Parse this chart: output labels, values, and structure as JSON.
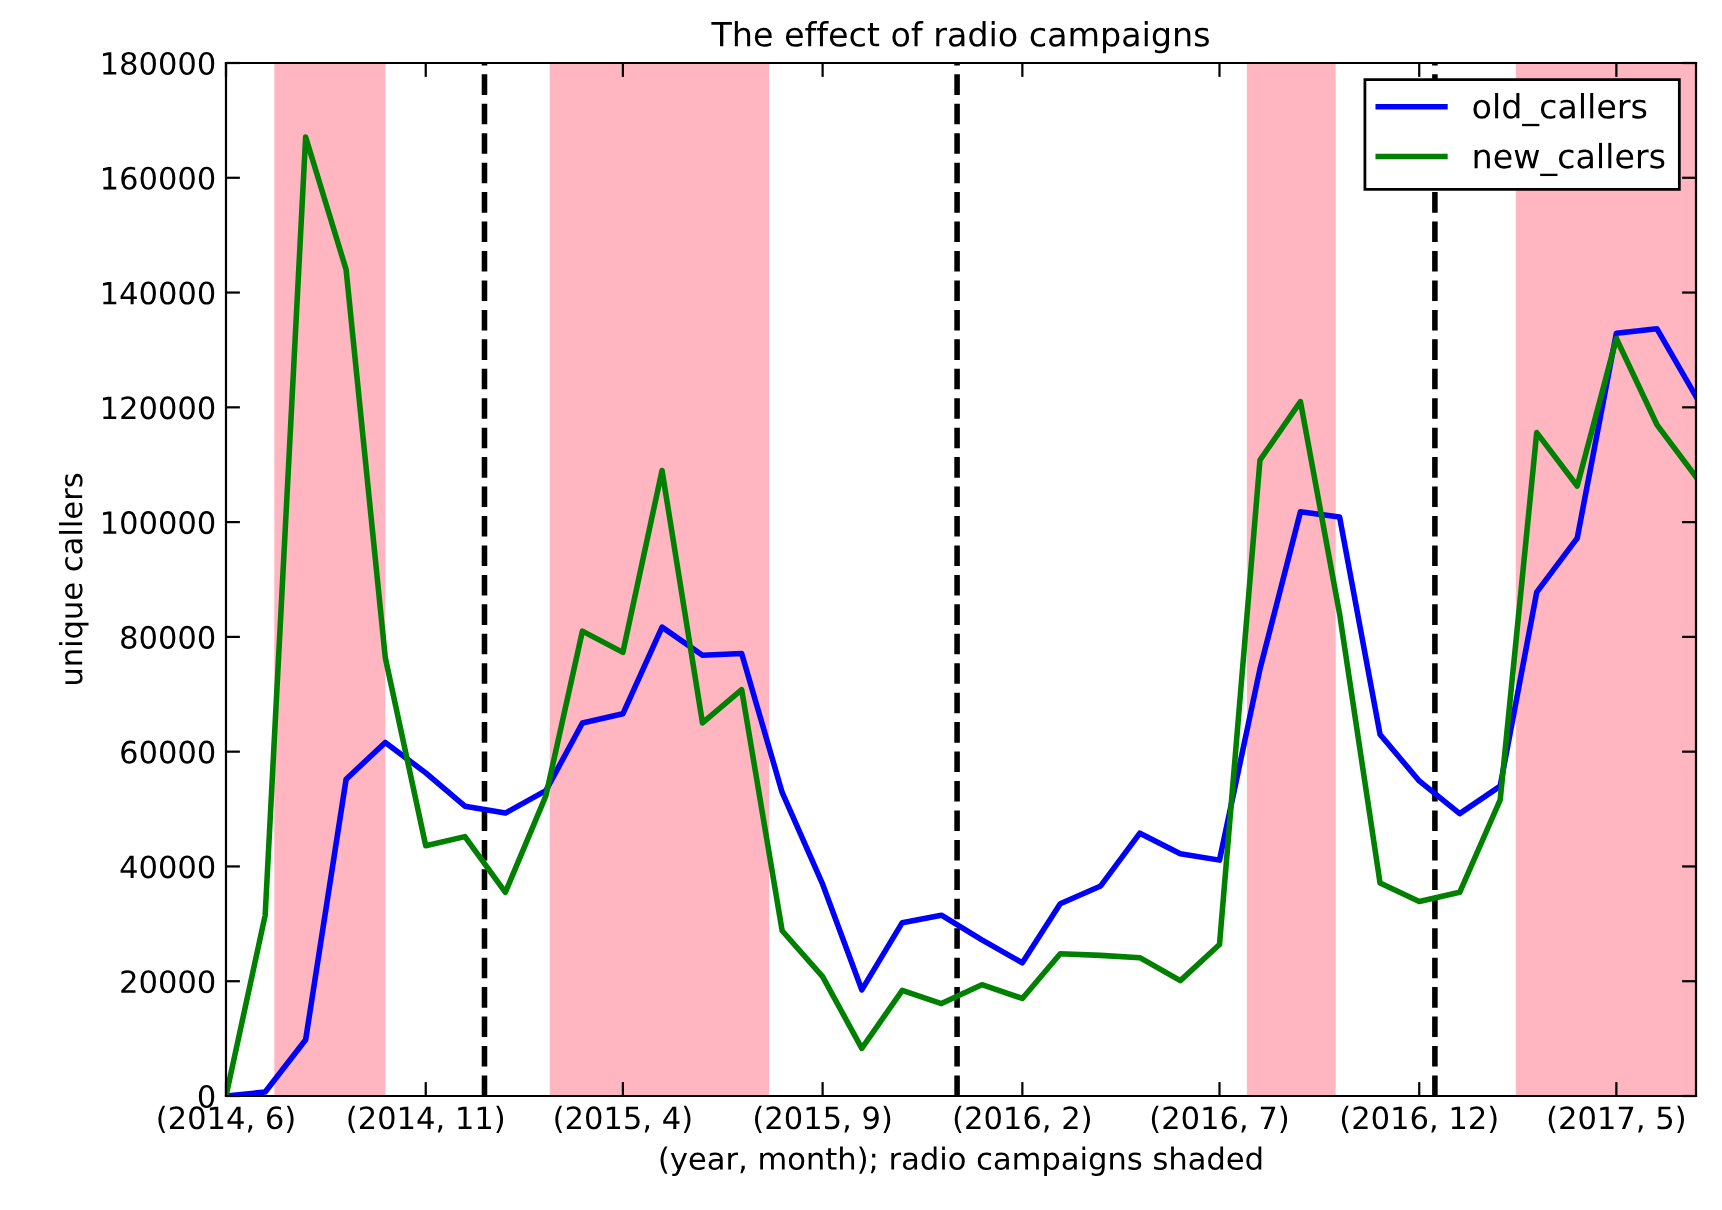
{
  "chart_data": {
    "type": "line",
    "title": "The effect of radio campaigns",
    "xlabel": "(year, month); radio campaigns shaded",
    "ylabel": "unique callers",
    "x": [
      "2014-06",
      "2014-07",
      "2014-08",
      "2014-09",
      "2014-10",
      "2014-11",
      "2014-12",
      "2015-01",
      "2015-02",
      "2015-03",
      "2015-04",
      "2015-05",
      "2015-06",
      "2015-07",
      "2015-08",
      "2015-09",
      "2015-10",
      "2015-11",
      "2015-12",
      "2016-01",
      "2016-02",
      "2016-03",
      "2016-04",
      "2016-05",
      "2016-06",
      "2016-07",
      "2016-08",
      "2016-09",
      "2016-10",
      "2016-11",
      "2016-12",
      "2017-01",
      "2017-02",
      "2017-03",
      "2017-04",
      "2017-05",
      "2017-06",
      "2017-07"
    ],
    "series": [
      {
        "name": "old_callers",
        "color": "#0000ff",
        "values": [
          0,
          700,
          9800,
          55200,
          61600,
          56300,
          50500,
          49300,
          53200,
          65000,
          66600,
          81700,
          76800,
          77100,
          52900,
          36900,
          18500,
          30200,
          31500,
          27200,
          23200,
          33500,
          36600,
          45800,
          42200,
          41100,
          74400,
          101800,
          100900,
          63000,
          54900,
          49200,
          54000,
          87800,
          97200,
          132900,
          133700,
          121900
        ]
      },
      {
        "name": "new_callers",
        "color": "#008000",
        "values": [
          0,
          31500,
          167100,
          144000,
          76400,
          43600,
          45200,
          35500,
          52300,
          81000,
          77300,
          109000,
          65000,
          70800,
          28800,
          20800,
          8300,
          18400,
          16100,
          19400,
          17000,
          24800,
          24500,
          24100,
          20100,
          26400,
          110800,
          121000,
          84000,
          37100,
          33900,
          35500,
          51600,
          115600,
          106300,
          132000,
          117000,
          107900
        ]
      }
    ],
    "xlim": [
      "2014-06",
      "2017-07"
    ],
    "xticks": [
      {
        "value": "2014-06",
        "label": "(2014, 6)"
      },
      {
        "value": "2014-11",
        "label": "(2014, 11)"
      },
      {
        "value": "2015-04",
        "label": "(2015, 4)"
      },
      {
        "value": "2015-09",
        "label": "(2015, 9)"
      },
      {
        "value": "2016-02",
        "label": "(2016, 2)"
      },
      {
        "value": "2016-07",
        "label": "(2016, 7)"
      },
      {
        "value": "2016-12",
        "label": "(2016, 12)"
      },
      {
        "value": "2017-05",
        "label": "(2017, 5)"
      }
    ],
    "ylim": [
      0,
      180000
    ],
    "yticks": [
      0,
      20000,
      40000,
      60000,
      80000,
      100000,
      120000,
      140000,
      160000,
      180000
    ],
    "bands": [
      {
        "axis": "x",
        "from": "2014-07-08",
        "to": "2014-10-01",
        "color": "#ffb6c1"
      },
      {
        "axis": "x",
        "from": "2015-02-04",
        "to": "2015-07-22",
        "color": "#ffb6c1"
      },
      {
        "axis": "x",
        "from": "2016-07-22",
        "to": "2016-09-28",
        "color": "#ffb6c1"
      },
      {
        "axis": "x",
        "from": "2017-02-13",
        "to": "2017-07-01",
        "color": "#ffb6c1"
      }
    ],
    "ref_lines": [
      {
        "axis": "x",
        "value": "2014-12-16",
        "color": "#000000",
        "line_style": "dashed"
      },
      {
        "axis": "x",
        "value": "2015-12-13",
        "color": "#000000",
        "line_style": "dashed"
      },
      {
        "axis": "x",
        "value": "2016-12-13",
        "color": "#000000",
        "line_style": "dashed"
      }
    ],
    "grid": false,
    "legend": "top right",
    "line_style": "solid",
    "marker": "none"
  }
}
